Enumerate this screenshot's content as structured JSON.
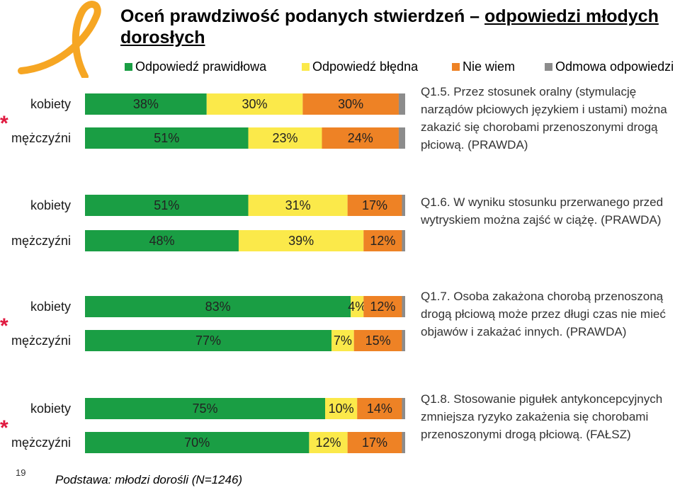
{
  "page": {
    "title_part1": "Oceń prawdziwość podanych stwierdzeń – ",
    "title_part2": "odpowiedzi młodych dorosłych",
    "footer": "Podstawa: młodzi dorośli (N=1246)",
    "page_number": "19",
    "star_symbol": "*"
  },
  "colors": {
    "green": "#1a9e44",
    "yellow": "#fbe94a",
    "orange": "#ee8225",
    "gray": "#8c8c8c",
    "star": "#e0193f",
    "logo": "#f6a623"
  },
  "legend": [
    {
      "label": "Odpowiedź prawidłowa",
      "color": "#1a9e44"
    },
    {
      "label": "Odpowiedź błędna",
      "color": "#fbe94a"
    },
    {
      "label": "Nie wiem",
      "color": "#ee8225"
    },
    {
      "label": "Odmowa odpowiedzi",
      "color": "#8c8c8c"
    }
  ],
  "chart_data": {
    "type": "bar",
    "orientation": "horizontal-stacked",
    "series_names": [
      "Odpowiedź prawidłowa",
      "Odpowiedź błędna",
      "Nie wiem",
      "Odmowa odpowiedzi"
    ],
    "groups": [
      {
        "question": "Q1.5. Przez stosunek oralny (stymulację narządów płciowych językiem i ustami) można zakazić się chorobami przenoszonymi drogą płciową. (PRAWDA)",
        "starred": true,
        "rows": [
          {
            "label": "kobiety",
            "values": [
              38,
              30,
              30,
              2
            ],
            "value_labels": [
              "38%",
              "30%",
              "30%",
              ""
            ]
          },
          {
            "label": "mężczyźni",
            "values": [
              51,
              23,
              24,
              2
            ],
            "value_labels": [
              "51%",
              "23%",
              "24%",
              ""
            ]
          }
        ]
      },
      {
        "question": "Q1.6. W wyniku stosunku przerwanego przed wytryskiem można zajść w ciążę. (PRAWDA)",
        "starred": false,
        "rows": [
          {
            "label": "kobiety",
            "values": [
              51,
              31,
              17,
              1
            ],
            "value_labels": [
              "51%",
              "31%",
              "17%",
              ""
            ]
          },
          {
            "label": "mężczyźni",
            "values": [
              48,
              39,
              12,
              1
            ],
            "value_labels": [
              "48%",
              "39%",
              "12%",
              ""
            ]
          }
        ]
      },
      {
        "question": "Q1.7. Osoba zakażona chorobą przenoszoną drogą płciową może przez długi czas nie mieć objawów i zakażać innych. (PRAWDA)",
        "starred": true,
        "rows": [
          {
            "label": "kobiety",
            "values": [
              83,
              4,
              12,
              1
            ],
            "value_labels": [
              "83%",
              "4%",
              "12%",
              ""
            ]
          },
          {
            "label": "mężczyźni",
            "values": [
              77,
              7,
              15,
              1
            ],
            "value_labels": [
              "77%",
              "7%",
              "15%",
              ""
            ]
          }
        ]
      },
      {
        "question": "Q1.8. Stosowanie pigułek antykoncepcyjnych zmniejsza ryzyko zakażenia się chorobami przenoszonymi drogą płciową. (FAŁSZ)",
        "starred": true,
        "rows": [
          {
            "label": "kobiety",
            "values": [
              75,
              10,
              14,
              1
            ],
            "value_labels": [
              "75%",
              "10%",
              "14%",
              ""
            ]
          },
          {
            "label": "mężczyźni",
            "values": [
              70,
              12,
              17,
              1
            ],
            "value_labels": [
              "70%",
              "12%",
              "17%",
              ""
            ]
          }
        ]
      }
    ],
    "xlim": [
      0,
      100
    ]
  }
}
